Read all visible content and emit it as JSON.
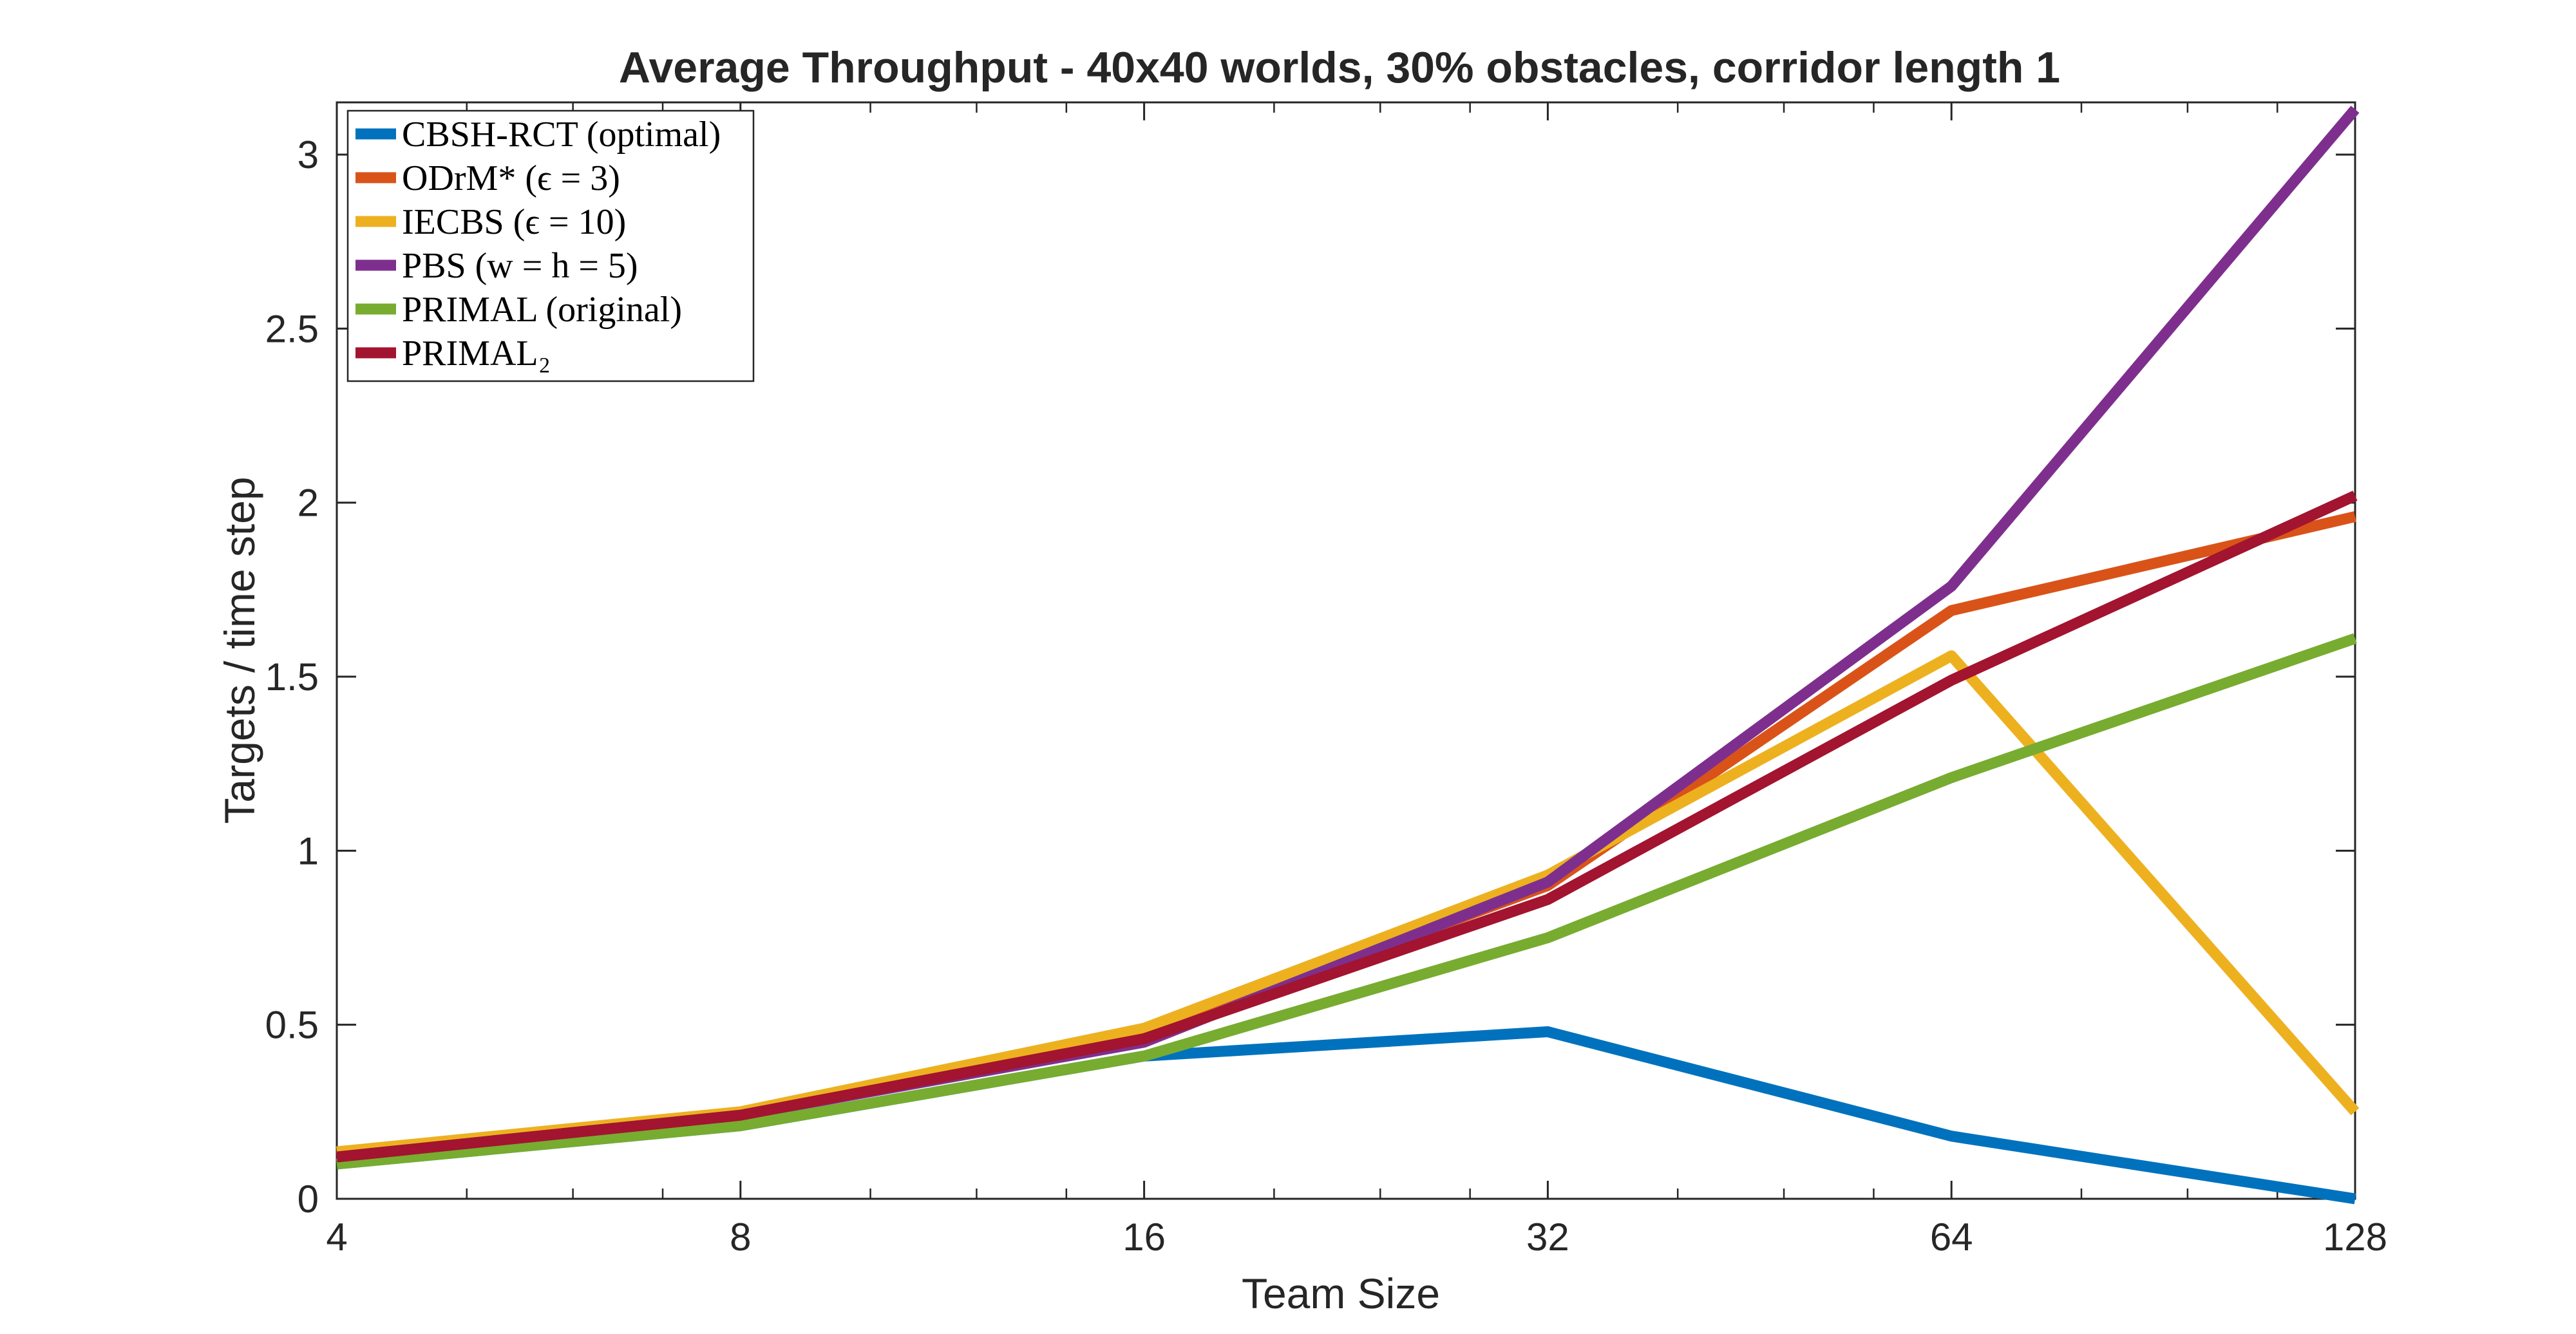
{
  "chart_data": {
    "type": "line",
    "title": "Average Throughput - 40x40 worlds, 30% obstacles, corridor length 1",
    "xlabel": "Team Size",
    "ylabel": "Targets / time step",
    "xscale": "log2",
    "x": [
      4,
      8,
      16,
      32,
      64,
      128
    ],
    "xticks": [
      "4",
      "8",
      "16",
      "32",
      "64",
      "128"
    ],
    "xlim": [
      4,
      128
    ],
    "ylim": [
      0,
      3.15
    ],
    "yticks": [
      0,
      0.5,
      1,
      1.5,
      2,
      2.5,
      3
    ],
    "ytick_labels": [
      "0",
      "0.5",
      "1",
      "1.5",
      "2",
      "2.5",
      "3"
    ],
    "legend_position": "top-left",
    "series": [
      {
        "name": "CBSH-RCT (optimal)",
        "color": "#0072BD",
        "values": [
          0.1,
          0.21,
          0.41,
          0.48,
          0.18,
          0.0
        ]
      },
      {
        "name": "ODrM* (ϵ = 3)",
        "color": "#D95319",
        "values": [
          0.12,
          0.24,
          0.47,
          0.9,
          1.69,
          1.96
        ]
      },
      {
        "name": "IECBS (ϵ = 10)",
        "color": "#EDB120",
        "values": [
          0.135,
          0.25,
          0.49,
          0.93,
          1.56,
          0.25
        ]
      },
      {
        "name": "PBS (w = h = 5)",
        "color": "#7E2F8E",
        "values": [
          0.12,
          0.24,
          0.45,
          0.91,
          1.76,
          3.13
        ]
      },
      {
        "name": "PRIMAL (original)",
        "color": "#77AC30",
        "values": [
          0.1,
          0.21,
          0.41,
          0.75,
          1.21,
          1.61
        ]
      },
      {
        "name": "PRIMAL₂",
        "color": "#A2142F",
        "values": [
          0.12,
          0.24,
          0.46,
          0.86,
          1.49,
          2.02
        ]
      }
    ]
  }
}
